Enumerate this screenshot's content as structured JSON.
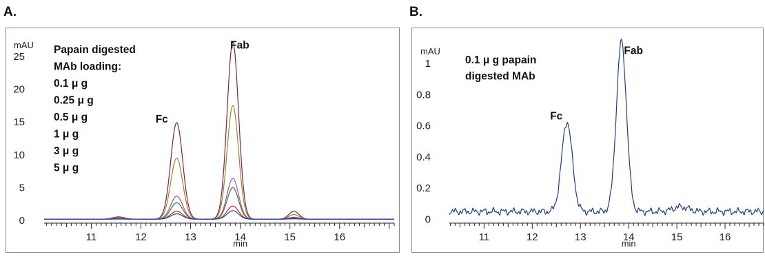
{
  "chart_data": [
    {
      "panel": "A.",
      "type": "line",
      "ylabel": "mAU",
      "xlabel": "min",
      "xlim": [
        10.05,
        17.1
      ],
      "ylim": [
        -0.3,
        27.5
      ],
      "xticks": [
        11,
        12,
        13,
        14,
        15,
        16
      ],
      "yticks": [
        0,
        5,
        10,
        15,
        20,
        25
      ],
      "legend_lines": [
        "Papain digested",
        "MAb loading:",
        "0.1 μ g",
        "0.25 μ g",
        "0.5 μ g",
        "1 μ g",
        "3 μ g",
        "5 μ g"
      ],
      "annotations": [
        {
          "text": "Fc",
          "x": 12.42,
          "y": 14.9
        },
        {
          "text": "Fab",
          "x": 13.99,
          "y": 26.2
        }
      ],
      "series": [
        {
          "color": "#8b1a4a",
          "baseline": 0.2,
          "fc": 14.7,
          "fab": 27.0,
          "small": 1.2
        },
        {
          "color": "#8f8a2a",
          "baseline": 0.2,
          "fc": 9.3,
          "fab": 17.3,
          "small": 0.7
        },
        {
          "color": "#b34a9a",
          "baseline": 0.2,
          "fc": 3.5,
          "fab": 6.2,
          "small": 0.3
        },
        {
          "color": "#2a7a3a",
          "baseline": 0.2,
          "fc": 2.5,
          "fab": 4.8,
          "small": 0.2
        },
        {
          "color": "#cc2222",
          "baseline": 0.2,
          "fc": 1.2,
          "fab": 2.0,
          "small": 0.1
        },
        {
          "color": "#2244aa",
          "baseline": 0.2,
          "fc": 0.8,
          "fab": 1.3,
          "small": 0.05
        }
      ]
    },
    {
      "panel": "B.",
      "type": "line",
      "ylabel": "mAU",
      "xlabel": "min",
      "xlim": [
        10.28,
        16.8
      ],
      "ylim": [
        -0.02,
        1.15
      ],
      "xticks": [
        11,
        12,
        13,
        14,
        15,
        16
      ],
      "yticks": [
        0,
        0.2,
        0.4,
        0.6,
        0.8,
        1
      ],
      "legend_lines": [
        "0.1 μ g papain",
        "digested MAb"
      ],
      "annotations": [
        {
          "text": "Fc",
          "x": 12.5,
          "y": 0.64
        },
        {
          "text": "Fab",
          "x": 14.1,
          "y": 1.06
        }
      ],
      "series": [
        {
          "color": "#1f3a8a",
          "baseline": 0.05,
          "fc": 0.575,
          "fab": 1.09,
          "small": 0.03
        }
      ]
    }
  ]
}
